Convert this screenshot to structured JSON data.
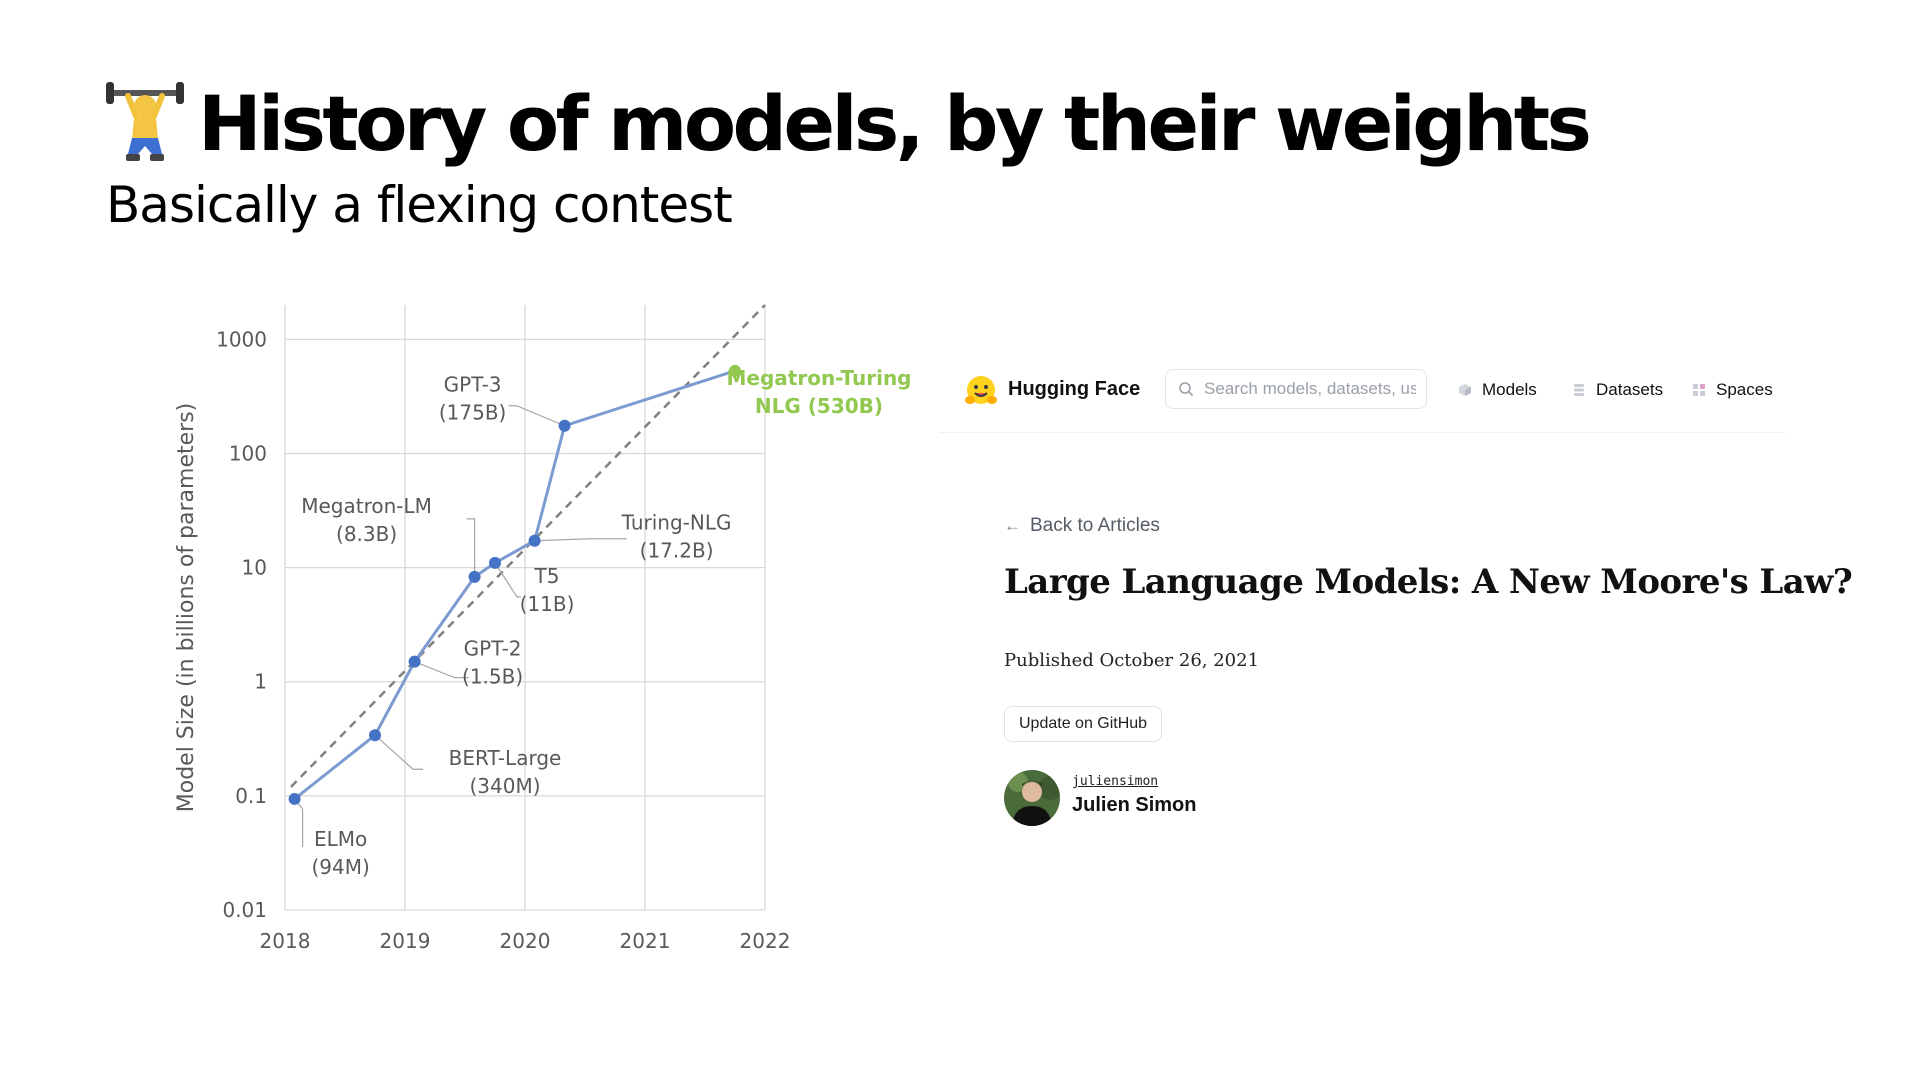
{
  "slide": {
    "title": "History of models, by their weights",
    "subtitle": "Basically a flexing contest",
    "title_icon": "weightlifter-icon"
  },
  "chart_data": {
    "type": "line",
    "title": "",
    "xlabel": "",
    "ylabel": "Model Size (in billions of parameters)",
    "x_ticks": [
      "2018",
      "2019",
      "2020",
      "2021",
      "2022"
    ],
    "y_ticks": [
      "0.01",
      "0.1",
      "1",
      "10",
      "100",
      "1000"
    ],
    "y_scale": "log",
    "xlim": [
      2018,
      2022
    ],
    "ylim": [
      0.01,
      2000
    ],
    "grid": true,
    "series": [
      {
        "points": [
          {
            "x": 2018.08,
            "y": 0.094,
            "label": [
              "ELMo",
              "(94M)"
            ]
          },
          {
            "x": 2018.75,
            "y": 0.34,
            "label": [
              "BERT-Large",
              "(340M)"
            ]
          },
          {
            "x": 2019.08,
            "y": 1.5,
            "label": [
              "GPT-2",
              "(1.5B)"
            ]
          },
          {
            "x": 2019.58,
            "y": 8.3,
            "label": [
              "Megatron-LM",
              "(8.3B)"
            ]
          },
          {
            "x": 2019.75,
            "y": 11,
            "label": [
              "T5",
              "(11B)"
            ]
          },
          {
            "x": 2020.08,
            "y": 17.2,
            "label": [
              "Turing-NLG",
              "(17.2B)"
            ]
          },
          {
            "x": 2020.33,
            "y": 175,
            "label": [
              "GPT-3",
              "(175B)"
            ]
          },
          {
            "x": 2021.75,
            "y": 530,
            "label": [
              "Megatron-Turing",
              "NLG (530B)"
            ],
            "highlight": true
          }
        ]
      }
    ],
    "trend": {
      "from": {
        "x": 2018.05,
        "y": 0.12
      },
      "to": {
        "x": 2022,
        "y": 2000
      }
    },
    "colors": {
      "line": "#7b9bd1",
      "marker": "#4472c4",
      "highlight": "#92c84f",
      "grid": "#d9d9d9",
      "trend": "#808080",
      "text": "#595959"
    }
  },
  "hf_page": {
    "brand": "Hugging Face",
    "logo_icon": "hugging-face-emoji-icon",
    "search_placeholder": "Search models, datasets, users...",
    "nav": [
      {
        "label": "Models",
        "icon": "models-cube-icon"
      },
      {
        "label": "Datasets",
        "icon": "datasets-stack-icon"
      },
      {
        "label": "Spaces",
        "icon": "spaces-grid-icon"
      }
    ],
    "back_label": "Back to Articles",
    "article_title": "Large Language Models: A New Moore's Law?",
    "published": "Published October 26, 2021",
    "github_button": "Update on GitHub",
    "author": {
      "handle": "juliensimon",
      "name": "Julien Simon"
    }
  }
}
